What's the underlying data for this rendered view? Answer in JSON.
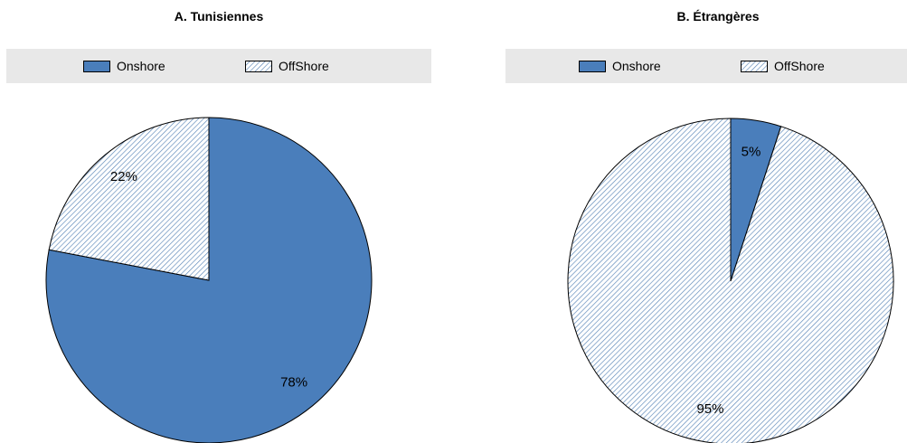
{
  "colors": {
    "onshore": "#4a7ebb",
    "offshore_hatch": "#5a86b8",
    "outline": "#000000"
  },
  "chart_data": [
    {
      "type": "pie",
      "title": "A. Tunisiennes",
      "legend": [
        "Onshore",
        "OffShore"
      ],
      "legend_placement": "top",
      "slices": [
        {
          "name": "Onshore",
          "value": 78,
          "label": "78%",
          "fill": "solid"
        },
        {
          "name": "OffShore",
          "value": 22,
          "label": "22%",
          "fill": "hatch"
        }
      ]
    },
    {
      "type": "pie",
      "title": "B. Étrangères",
      "legend": [
        "Onshore",
        "OffShore"
      ],
      "legend_placement": "top",
      "slices": [
        {
          "name": "Onshore",
          "value": 5,
          "label": "5%",
          "fill": "solid"
        },
        {
          "name": "OffShore",
          "value": 95,
          "label": "95%",
          "fill": "hatch"
        }
      ]
    }
  ]
}
